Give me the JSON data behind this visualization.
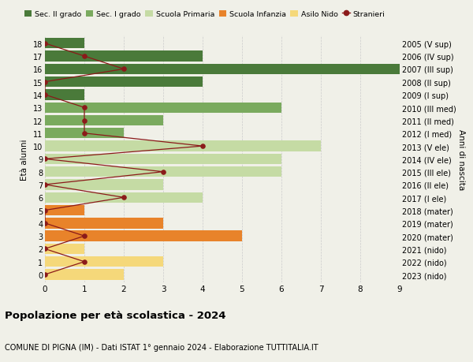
{
  "title": "Popolazione per età scolastica - 2024",
  "subtitle": "COMUNE DI PIGNA (IM) - Dati ISTAT 1° gennaio 2024 - Elaborazione TUTTITALIA.IT",
  "xlabel_left": "Età alunni",
  "xlabel_right": "Anni di nascita",
  "yticks": [
    0,
    1,
    2,
    3,
    4,
    5,
    6,
    7,
    8,
    9,
    10,
    11,
    12,
    13,
    14,
    15,
    16,
    17,
    18
  ],
  "ylabels_left": [
    "0",
    "1",
    "2",
    "3",
    "4",
    "5",
    "6",
    "7",
    "8",
    "9",
    "10",
    "11",
    "12",
    "13",
    "14",
    "15",
    "16",
    "17",
    "18"
  ],
  "ylabels_right": [
    "2023 (nido)",
    "2022 (nido)",
    "2021 (nido)",
    "2020 (mater)",
    "2019 (mater)",
    "2018 (mater)",
    "2017 (I ele)",
    "2016 (II ele)",
    "2015 (III ele)",
    "2014 (IV ele)",
    "2013 (V ele)",
    "2012 (I med)",
    "2011 (II med)",
    "2010 (III med)",
    "2009 (I sup)",
    "2008 (II sup)",
    "2007 (III sup)",
    "2006 (IV sup)",
    "2005 (V sup)"
  ],
  "bar_values": [
    2,
    3,
    1,
    5,
    3,
    1,
    4,
    3,
    6,
    6,
    7,
    2,
    3,
    6,
    1,
    4,
    9,
    4,
    1
  ],
  "bar_colors": [
    "#f5d87a",
    "#f5d87a",
    "#f5d87a",
    "#e8832a",
    "#e8832a",
    "#e8832a",
    "#c5dba4",
    "#c5dba4",
    "#c5dba4",
    "#c5dba4",
    "#c5dba4",
    "#7aaa5e",
    "#7aaa5e",
    "#7aaa5e",
    "#4a7a3a",
    "#4a7a3a",
    "#4a7a3a",
    "#4a7a3a",
    "#4a7a3a"
  ],
  "stranieri_x": [
    0,
    1,
    0,
    1,
    0,
    0,
    2,
    0,
    3,
    0,
    4,
    1,
    1,
    1,
    0,
    0,
    2,
    1,
    0
  ],
  "legend_labels": [
    "Sec. II grado",
    "Sec. I grado",
    "Scuola Primaria",
    "Scuola Infanzia",
    "Asilo Nido",
    "Stranieri"
  ],
  "legend_colors": [
    "#4a7a3a",
    "#7aaa5e",
    "#c5dba4",
    "#e8832a",
    "#f5d87a",
    "#8b1a1a"
  ],
  "bg_color": "#f0f0e8",
  "xlim": [
    0,
    9
  ],
  "grid_color": "#cccccc"
}
